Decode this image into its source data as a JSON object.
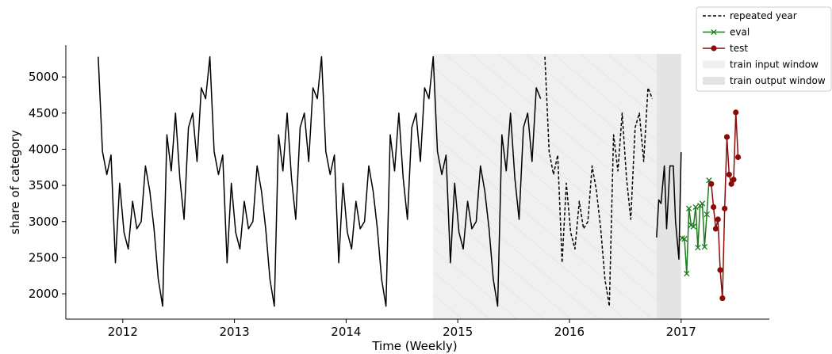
{
  "chart_data": {
    "type": "line",
    "xlabel": "Time (Weekly)",
    "ylabel": "share of category",
    "xlim": [
      2011.49,
      2017.79
    ],
    "xticks": [
      2012,
      2013,
      2014,
      2015,
      2016,
      2017
    ],
    "ylim": [
      1650,
      5440
    ],
    "yticks": [
      2000,
      2500,
      3000,
      3500,
      4000,
      4500,
      5000
    ],
    "legend": "upper right",
    "spans": [
      {
        "name": "train input window",
        "x": [
          2014.78,
          2016.78
        ],
        "color": "#f0f0f0",
        "hatch": true
      },
      {
        "name": "train output window",
        "x": [
          2016.78,
          2017.0
        ],
        "color": "#e4e4e4",
        "hatch": false
      }
    ],
    "series": [
      {
        "color": "#000000",
        "dash": false,
        "marker": "none",
        "x": [
          2011.78,
          2011.818,
          2011.857,
          2011.895,
          2011.934,
          2011.972,
          2012.011,
          2012.049,
          2012.088,
          2012.126,
          2012.165,
          2012.203,
          2012.242,
          2012.28,
          2012.318,
          2012.357,
          2012.395,
          2012.434,
          2012.472,
          2012.511,
          2012.549,
          2012.588,
          2012.626,
          2012.665,
          2012.703,
          2012.742,
          2012.78,
          2012.818,
          2012.857,
          2012.895,
          2012.934,
          2012.972,
          2013.011,
          2013.049,
          2013.088,
          2013.126,
          2013.165,
          2013.203,
          2013.242,
          2013.28,
          2013.318,
          2013.357,
          2013.395,
          2013.434,
          2013.472,
          2013.511,
          2013.549,
          2013.588,
          2013.626,
          2013.665,
          2013.703,
          2013.742,
          2013.78,
          2013.818,
          2013.857,
          2013.895,
          2013.934,
          2013.972,
          2014.011,
          2014.049,
          2014.088,
          2014.126,
          2014.165,
          2014.203,
          2014.242,
          2014.28,
          2014.318,
          2014.357,
          2014.395,
          2014.434,
          2014.472,
          2014.511,
          2014.549,
          2014.588,
          2014.626,
          2014.665,
          2014.703,
          2014.742,
          2014.78,
          2014.818,
          2014.857,
          2014.895,
          2014.934,
          2014.972,
          2015.011,
          2015.049,
          2015.088,
          2015.126,
          2015.165,
          2015.203,
          2015.242,
          2015.28,
          2015.318,
          2015.357,
          2015.395,
          2015.434,
          2015.472,
          2015.511,
          2015.549,
          2015.588,
          2015.626,
          2015.665,
          2015.703,
          2015.742
        ],
        "values": [
          5280,
          3970,
          3650,
          3920,
          2430,
          3530,
          2850,
          2620,
          3280,
          2900,
          3000,
          3770,
          3420,
          2900,
          2200,
          1830,
          4200,
          3700,
          4500,
          3600,
          3030,
          4300,
          4500,
          3830,
          4850,
          4700,
          5280,
          3970,
          3650,
          3920,
          2430,
          3530,
          2850,
          2620,
          3280,
          2900,
          3000,
          3770,
          3420,
          2900,
          2200,
          1830,
          4200,
          3700,
          4500,
          3600,
          3030,
          4300,
          4500,
          3830,
          4850,
          4700,
          5280,
          3970,
          3650,
          3920,
          2430,
          3530,
          2850,
          2620,
          3280,
          2900,
          3000,
          3770,
          3420,
          2900,
          2200,
          1830,
          4200,
          3700,
          4500,
          3600,
          3030,
          4300,
          4500,
          3830,
          4850,
          4700,
          5280,
          3970,
          3650,
          3920,
          2430,
          3530,
          2850,
          2620,
          3280,
          2900,
          3000,
          3770,
          3420,
          2900,
          2200,
          1830,
          4200,
          3700,
          4500,
          3600,
          3030,
          4300,
          4500,
          3830,
          4850,
          4700
        ]
      },
      {
        "name": "repeated year",
        "color": "#000000",
        "dash": true,
        "marker": "none",
        "x": [
          2015.78,
          2015.818,
          2015.857,
          2015.895,
          2015.934,
          2015.972,
          2016.011,
          2016.049,
          2016.088,
          2016.126,
          2016.165,
          2016.203,
          2016.242,
          2016.28,
          2016.318,
          2016.357,
          2016.395,
          2016.434,
          2016.472,
          2016.511,
          2016.549,
          2016.588,
          2016.626,
          2016.665,
          2016.703,
          2016.742
        ],
        "values": [
          5280,
          3970,
          3650,
          3920,
          2430,
          3530,
          2850,
          2620,
          3280,
          2900,
          3000,
          3770,
          3420,
          2900,
          2200,
          1830,
          4200,
          3700,
          4500,
          3600,
          3030,
          4300,
          4500,
          3830,
          4850,
          4700
        ]
      },
      {
        "color": "#000000",
        "dash": false,
        "marker": "none",
        "x": [
          2016.78,
          2016.8,
          2016.82,
          2016.85,
          2016.87,
          2016.9,
          2016.93,
          2016.95,
          2016.98,
          2017.0
        ],
        "values": [
          2780,
          3300,
          3250,
          3770,
          2900,
          3770,
          3770,
          3000,
          2480,
          3960
        ]
      },
      {
        "name": "eval",
        "color": "#1e7a1e",
        "dash": false,
        "marker": "x",
        "x": [
          2017.01,
          2017.03,
          2017.05,
          2017.07,
          2017.09,
          2017.11,
          2017.13,
          2017.15,
          2017.17,
          2017.19,
          2017.21,
          2017.23,
          2017.25
        ],
        "values": [
          2770,
          2760,
          2280,
          3180,
          2950,
          2930,
          3200,
          2640,
          3220,
          3250,
          2650,
          3100,
          3570
        ]
      },
      {
        "name": "test",
        "color": "#8b0a0a",
        "dash": false,
        "marker": "o",
        "x": [
          2017.27,
          2017.29,
          2017.31,
          2017.33,
          2017.35,
          2017.37,
          2017.39,
          2017.41,
          2017.43,
          2017.45,
          2017.47,
          2017.49,
          2017.51
        ],
        "values": [
          3520,
          3200,
          2900,
          3030,
          2330,
          1940,
          3180,
          4170,
          3650,
          3520,
          3580,
          4510,
          3890
        ]
      }
    ]
  }
}
